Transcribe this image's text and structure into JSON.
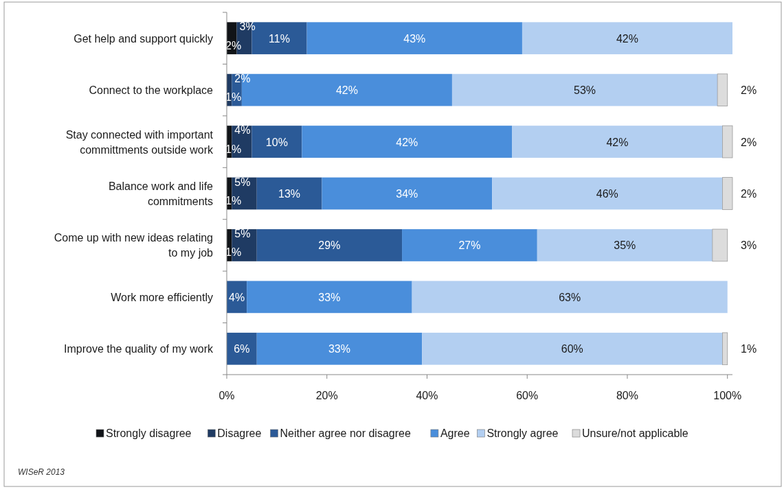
{
  "chart_data": {
    "type": "bar",
    "orientation": "horizontal",
    "stacked": true,
    "categories": [
      "Get help and support quickly",
      "Connect to the workplace",
      "Stay connected with important committments outside work",
      "Balance work and life commitments",
      "Come up with new ideas relating to my job",
      "Work more efficiently",
      "Improve the quality of my work"
    ],
    "series": [
      {
        "name": "Strongly disagree",
        "color": "#111418",
        "values": [
          2,
          null,
          1,
          1,
          1,
          null,
          null
        ],
        "value_labels": [
          "2%",
          null,
          "1%",
          "1%",
          "1%",
          null,
          null
        ]
      },
      {
        "name": "Disagree",
        "color": "#1f3b63",
        "values": [
          3,
          1,
          4,
          5,
          5,
          null,
          null
        ],
        "value_labels": [
          "3%",
          "1%",
          "4%",
          "5%",
          "5%",
          null,
          null
        ]
      },
      {
        "name": "Neither agree nor disagree",
        "color": "#2b5a97",
        "values": [
          11,
          2,
          10,
          13,
          29,
          4,
          6
        ],
        "value_labels": [
          "11%",
          "2%",
          "10%",
          "13%",
          "29%",
          "4%",
          "6%"
        ]
      },
      {
        "name": "Agree",
        "color": "#4a8edb",
        "values": [
          43,
          42,
          42,
          34,
          27,
          33,
          33
        ],
        "value_labels": [
          "43%",
          "42%",
          "42%",
          "34%",
          "27%",
          "33%",
          "33%"
        ]
      },
      {
        "name": "Strongly agree",
        "color": "#b3cff1",
        "values": [
          42,
          53,
          42,
          46,
          35,
          63,
          60
        ],
        "value_labels": [
          "42%",
          "53%",
          "42%",
          "46%",
          "35%",
          "63%",
          "60%"
        ]
      },
      {
        "name": "Unsure/not applicable",
        "color": "#dcdcdc",
        "values": [
          null,
          2,
          2,
          2,
          3,
          null,
          1
        ],
        "value_labels": [
          null,
          "2%",
          "2%",
          "2%",
          "3%",
          null,
          "1%"
        ]
      }
    ],
    "xlim": [
      0,
      101
    ],
    "xticks": [
      {
        "value": 0,
        "label": "0%"
      },
      {
        "value": 20,
        "label": "20%"
      },
      {
        "value": 40,
        "label": "40%"
      },
      {
        "value": 60,
        "label": "60%"
      },
      {
        "value": 80,
        "label": "80%"
      },
      {
        "value": 100,
        "label": "100%"
      }
    ],
    "grid": false,
    "legend": "bottom",
    "annotations": [
      "WISeR 2013"
    ]
  }
}
